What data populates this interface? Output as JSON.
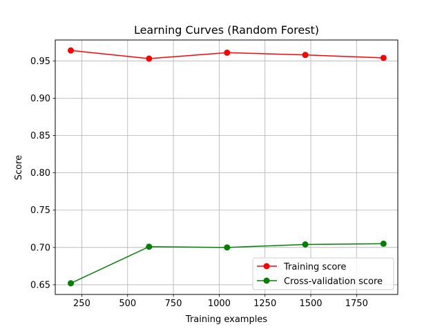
{
  "chart_data": {
    "type": "line",
    "title": "Learning Curves (Random Forest)",
    "xlabel": "Training examples",
    "ylabel": "Score",
    "xlim": [
      105,
      1975
    ],
    "ylim": [
      0.637,
      0.978
    ],
    "xticks": [
      250,
      500,
      750,
      1000,
      1250,
      1500,
      1750
    ],
    "xtick_labels": [
      "250",
      "500",
      "750",
      "1000",
      "1250",
      "1500",
      "1750"
    ],
    "yticks": [
      0.65,
      0.7,
      0.75,
      0.8,
      0.85,
      0.9,
      0.95
    ],
    "ytick_labels": [
      "0.65",
      "0.70",
      "0.75",
      "0.80",
      "0.85",
      "0.90",
      "0.95"
    ],
    "grid": true,
    "legend_position": "lower-right",
    "x": [
      190,
      617,
      1043,
      1470,
      1897
    ],
    "series": [
      {
        "name": "Training score",
        "color": "#ff0000",
        "values": [
          0.964,
          0.953,
          0.961,
          0.958,
          0.954
        ]
      },
      {
        "name": "Cross-validation score",
        "color": "#008000",
        "values": [
          0.652,
          0.701,
          0.7,
          0.704,
          0.705
        ]
      }
    ]
  }
}
